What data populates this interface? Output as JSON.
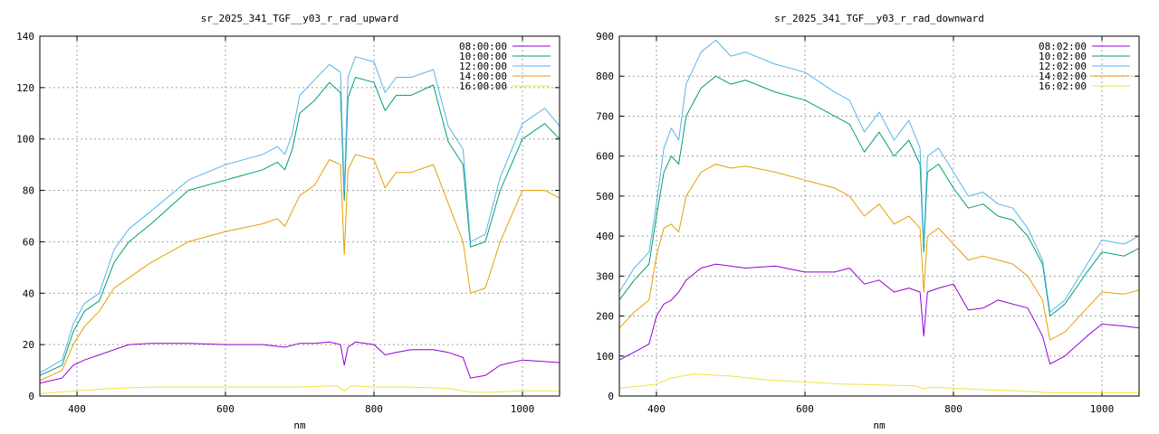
{
  "chart_data": [
    {
      "type": "line",
      "title": "sr_2025_341_TGF__y03_r_rad_upward",
      "xlabel": "nm",
      "ylabel": "",
      "xlim": [
        350,
        1050
      ],
      "ylim": [
        0,
        140
      ],
      "xticks": [
        400,
        600,
        800,
        1000
      ],
      "yticks": [
        0,
        20,
        40,
        60,
        80,
        100,
        120,
        140
      ],
      "grid": true,
      "legend_position": "top-right",
      "series": [
        {
          "name": "08:00:00",
          "color": "#9400d3",
          "x": [
            350,
            380,
            395,
            410,
            430,
            450,
            470,
            500,
            550,
            600,
            650,
            680,
            700,
            720,
            740,
            755,
            760,
            765,
            775,
            800,
            815,
            830,
            850,
            880,
            900,
            920,
            930,
            950,
            970,
            1000,
            1050
          ],
          "y": [
            5,
            7,
            12,
            14,
            16,
            18,
            20,
            20.5,
            20.5,
            20,
            20,
            19,
            20.5,
            20.5,
            21,
            20,
            12,
            19,
            21,
            20,
            16,
            17,
            18,
            18,
            17,
            15,
            7,
            8,
            12,
            14,
            13
          ]
        },
        {
          "name": "10:00:00",
          "color": "#009e73",
          "x": [
            350,
            380,
            395,
            410,
            430,
            450,
            470,
            500,
            550,
            600,
            650,
            670,
            680,
            690,
            700,
            720,
            740,
            755,
            760,
            765,
            775,
            800,
            815,
            830,
            850,
            880,
            900,
            920,
            930,
            950,
            970,
            1000,
            1030,
            1050
          ],
          "y": [
            8,
            12,
            25,
            33,
            37,
            52,
            60,
            67,
            80,
            84,
            88,
            91,
            88,
            96,
            110,
            115,
            122,
            118,
            76,
            116,
            124,
            122,
            111,
            117,
            117,
            121,
            99,
            90,
            58,
            60,
            80,
            100,
            106,
            100
          ]
        },
        {
          "name": "12:00:00",
          "color": "#56b4e9",
          "x": [
            350,
            380,
            395,
            410,
            430,
            450,
            470,
            500,
            550,
            600,
            650,
            670,
            680,
            690,
            700,
            720,
            740,
            755,
            760,
            765,
            775,
            800,
            815,
            830,
            850,
            880,
            900,
            920,
            930,
            950,
            970,
            1000,
            1030,
            1050
          ],
          "y": [
            9,
            14,
            28,
            36,
            40,
            57,
            65,
            72,
            84,
            90,
            94,
            97,
            94,
            102,
            117,
            123,
            129,
            126,
            80,
            124,
            132,
            130,
            118,
            124,
            124,
            127,
            105,
            96,
            60,
            63,
            85,
            106,
            112,
            105
          ]
        },
        {
          "name": "14:00:00",
          "color": "#e69f00",
          "x": [
            350,
            380,
            395,
            410,
            430,
            450,
            470,
            500,
            550,
            600,
            650,
            670,
            680,
            690,
            700,
            720,
            740,
            755,
            760,
            765,
            775,
            800,
            815,
            830,
            850,
            880,
            900,
            920,
            930,
            950,
            970,
            1000,
            1030,
            1050
          ],
          "y": [
            6,
            10,
            20,
            27,
            33,
            42,
            46,
            52,
            60,
            64,
            67,
            69,
            66,
            72,
            78,
            82,
            92,
            90,
            55,
            88,
            94,
            92,
            81,
            87,
            87,
            90,
            75,
            60,
            40,
            42,
            60,
            80,
            80,
            77
          ]
        },
        {
          "name": "16:00:00",
          "color": "#f0e442",
          "x": [
            350,
            400,
            450,
            500,
            550,
            600,
            650,
            700,
            750,
            760,
            770,
            800,
            850,
            900,
            930,
            960,
            1000,
            1050
          ],
          "y": [
            1,
            2,
            3,
            3.5,
            3.5,
            3.5,
            3.5,
            3.5,
            4,
            2,
            4,
            3.5,
            3.5,
            3,
            1.5,
            1.5,
            2,
            2
          ]
        }
      ]
    },
    {
      "type": "line",
      "title": "sr_2025_341_TGF__y03_r_rad_downward",
      "xlabel": "nm",
      "ylabel": "",
      "xlim": [
        350,
        1050
      ],
      "ylim": [
        0,
        900
      ],
      "xticks": [
        400,
        600,
        800,
        1000
      ],
      "yticks": [
        0,
        100,
        200,
        300,
        400,
        500,
        600,
        700,
        800,
        900
      ],
      "grid": true,
      "legend_position": "top-right",
      "series": [
        {
          "name": "08:02:00",
          "color": "#9400d3",
          "x": [
            350,
            370,
            390,
            400,
            410,
            420,
            430,
            440,
            460,
            480,
            520,
            560,
            600,
            640,
            660,
            680,
            700,
            720,
            740,
            755,
            760,
            765,
            780,
            800,
            820,
            840,
            860,
            900,
            920,
            930,
            950,
            980,
            1000,
            1030,
            1050
          ],
          "y": [
            90,
            110,
            130,
            200,
            230,
            240,
            260,
            290,
            320,
            330,
            320,
            325,
            310,
            310,
            320,
            280,
            290,
            260,
            270,
            260,
            150,
            260,
            270,
            280,
            215,
            220,
            240,
            220,
            150,
            80,
            100,
            150,
            180,
            175,
            170
          ]
        },
        {
          "name": "10:02:00",
          "color": "#009e73",
          "x": [
            350,
            370,
            390,
            400,
            410,
            420,
            430,
            440,
            460,
            480,
            500,
            520,
            560,
            600,
            640,
            660,
            680,
            700,
            720,
            740,
            755,
            760,
            765,
            780,
            800,
            820,
            840,
            860,
            880,
            900,
            920,
            930,
            950,
            980,
            1000,
            1030,
            1050
          ],
          "y": [
            240,
            290,
            330,
            450,
            560,
            600,
            580,
            700,
            770,
            800,
            780,
            790,
            760,
            740,
            700,
            680,
            610,
            660,
            600,
            640,
            580,
            360,
            560,
            580,
            520,
            470,
            480,
            450,
            440,
            400,
            330,
            200,
            230,
            310,
            360,
            350,
            370
          ]
        },
        {
          "name": "12:02:00",
          "color": "#56b4e9",
          "x": [
            350,
            370,
            390,
            400,
            410,
            420,
            430,
            440,
            460,
            480,
            500,
            520,
            560,
            600,
            640,
            660,
            680,
            700,
            720,
            740,
            755,
            760,
            765,
            780,
            800,
            820,
            840,
            860,
            880,
            900,
            920,
            930,
            950,
            980,
            1000,
            1030,
            1050
          ],
          "y": [
            260,
            320,
            360,
            480,
            620,
            670,
            640,
            780,
            860,
            890,
            850,
            860,
            830,
            810,
            760,
            740,
            660,
            710,
            640,
            690,
            620,
            380,
            600,
            620,
            560,
            500,
            510,
            480,
            470,
            420,
            340,
            210,
            240,
            330,
            390,
            380,
            400
          ]
        },
        {
          "name": "14:02:00",
          "color": "#e69f00",
          "x": [
            350,
            370,
            390,
            400,
            410,
            420,
            430,
            440,
            460,
            480,
            500,
            520,
            560,
            600,
            640,
            660,
            680,
            700,
            720,
            740,
            755,
            760,
            765,
            780,
            800,
            820,
            840,
            860,
            880,
            900,
            920,
            930,
            950,
            980,
            1000,
            1030,
            1050
          ],
          "y": [
            170,
            210,
            240,
            350,
            420,
            430,
            410,
            500,
            560,
            580,
            570,
            575,
            560,
            540,
            520,
            500,
            450,
            480,
            430,
            450,
            420,
            260,
            400,
            420,
            380,
            340,
            350,
            340,
            330,
            300,
            240,
            140,
            160,
            220,
            260,
            255,
            265
          ]
        },
        {
          "name": "16:02:00",
          "color": "#f0e442",
          "x": [
            350,
            380,
            400,
            420,
            450,
            500,
            550,
            600,
            650,
            700,
            750,
            760,
            770,
            800,
            850,
            900,
            930,
            1000,
            1050
          ],
          "y": [
            20,
            25,
            30,
            45,
            55,
            50,
            40,
            35,
            30,
            28,
            25,
            18,
            22,
            20,
            15,
            12,
            8,
            8,
            8
          ]
        }
      ]
    }
  ]
}
